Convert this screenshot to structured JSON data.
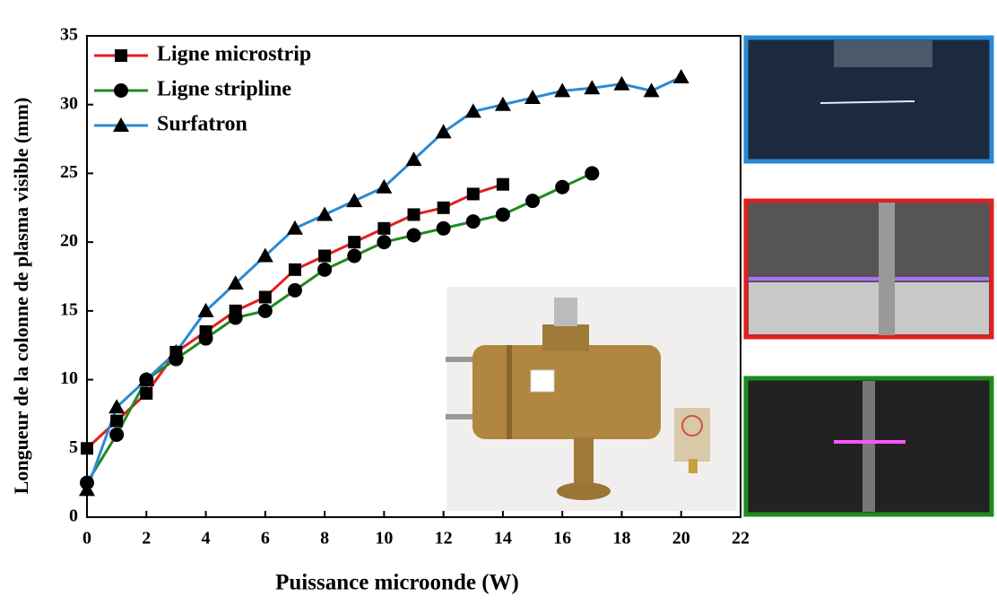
{
  "chart_data": {
    "type": "line",
    "x_label": "Puissance microonde (W)",
    "y_label": "Longueur de la colonne de plasma visible (mm)",
    "x": [
      0,
      1,
      2,
      3,
      4,
      5,
      6,
      7,
      8,
      9,
      10,
      11,
      12,
      13,
      14,
      15,
      16,
      17,
      18,
      19,
      20
    ],
    "series": [
      {
        "name": "Ligne microstrip",
        "color": "#e02020",
        "marker": "square",
        "values": [
          5,
          7,
          9,
          12,
          13.5,
          15,
          16,
          18,
          19,
          20,
          21,
          22,
          22.5,
          23.5,
          24.2,
          null,
          null,
          null,
          null,
          null,
          null
        ]
      },
      {
        "name": "Ligne stripline",
        "color": "#1f8a1f",
        "marker": "circle",
        "values": [
          2.5,
          6,
          10,
          11.5,
          13,
          14.5,
          15,
          16.5,
          18,
          19,
          20,
          20.5,
          21,
          21.5,
          22,
          23,
          24,
          25,
          null,
          null,
          null
        ]
      },
      {
        "name": "Surfatron",
        "color": "#2a8ad4",
        "marker": "triangle",
        "values": [
          2,
          8,
          10,
          12,
          15,
          17,
          19,
          21,
          22,
          23,
          24,
          26,
          28,
          29.5,
          30,
          30.5,
          31,
          31.2,
          31.5,
          31,
          32
        ]
      }
    ],
    "xlim": [
      0,
      22
    ],
    "xticks": [
      0,
      2,
      4,
      6,
      8,
      10,
      12,
      14,
      16,
      18,
      20,
      22
    ],
    "ylim": [
      0,
      35
    ],
    "yticks": [
      0,
      5,
      10,
      15,
      20,
      25,
      30,
      35
    ],
    "legend": "upper-left"
  }
}
